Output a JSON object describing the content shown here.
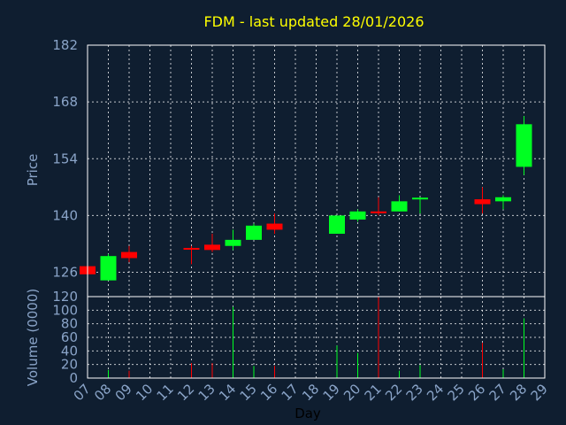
{
  "chart_data": {
    "type": "candlestick",
    "title": "FDM - last updated 28/01/2026",
    "xlabel": "Day",
    "colors": {
      "background": "#0f1e30",
      "up": "#00ff22",
      "down": "#ff0000",
      "title": "#ffff00",
      "axis_text": "#8aa4c8",
      "frame": "#ffffff",
      "grid": "#ffffff"
    },
    "x_ticks": [
      "07",
      "08",
      "09",
      "10",
      "11",
      "12",
      "13",
      "14",
      "15",
      "16",
      "17",
      "18",
      "19",
      "20",
      "21",
      "22",
      "23",
      "24",
      "25",
      "26",
      "27",
      "28",
      "29"
    ],
    "price_panel": {
      "ylabel": "Price",
      "ylim": [
        120,
        182
      ],
      "yticks": [
        126,
        140,
        154,
        168,
        182
      ],
      "grid": true
    },
    "volume_panel": {
      "ylabel": "Volume (0000)",
      "ylim": [
        0,
        120
      ],
      "yticks": [
        0,
        20,
        40,
        60,
        80,
        100,
        120
      ],
      "grid": true
    },
    "candles": [
      {
        "day": 7,
        "open": 127.5,
        "high": 128.0,
        "low": 125.0,
        "close": 125.5,
        "volume": 0
      },
      {
        "day": 8,
        "open": 124.0,
        "high": 130.5,
        "low": 124.0,
        "close": 130.0,
        "volume": 12
      },
      {
        "day": 9,
        "open": 131.0,
        "high": 132.5,
        "low": 128.5,
        "close": 129.5,
        "volume": 11
      },
      {
        "day": 12,
        "open": 132.0,
        "high": 132.5,
        "low": 128.0,
        "close": 131.8,
        "volume": 22
      },
      {
        "day": 13,
        "open": 132.8,
        "high": 135.5,
        "low": 131.0,
        "close": 131.5,
        "volume": 22
      },
      {
        "day": 14,
        "open": 132.5,
        "high": 136.5,
        "low": 131.5,
        "close": 134.0,
        "volume": 105
      },
      {
        "day": 15,
        "open": 134.0,
        "high": 138.0,
        "low": 134.0,
        "close": 137.5,
        "volume": 18
      },
      {
        "day": 16,
        "open": 138.0,
        "high": 140.5,
        "low": 135.5,
        "close": 136.5,
        "volume": 18
      },
      {
        "day": 19,
        "open": 135.5,
        "high": 140.0,
        "low": 135.5,
        "close": 140.0,
        "volume": 48
      },
      {
        "day": 20,
        "open": 139.0,
        "high": 141.5,
        "low": 138.5,
        "close": 141.0,
        "volume": 37
      },
      {
        "day": 21,
        "open": 141.0,
        "high": 144.5,
        "low": 140.0,
        "close": 140.6,
        "volume": 120
      },
      {
        "day": 22,
        "open": 141.0,
        "high": 145.0,
        "low": 141.0,
        "close": 143.5,
        "volume": 11
      },
      {
        "day": 23,
        "open": 144.2,
        "high": 144.5,
        "low": 140.5,
        "close": 144.4,
        "volume": 19
      },
      {
        "day": 26,
        "open": 144.0,
        "high": 147.0,
        "low": 140.5,
        "close": 142.8,
        "volume": 52
      },
      {
        "day": 27,
        "open": 143.5,
        "high": 145.0,
        "low": 141.5,
        "close": 144.5,
        "volume": 13
      },
      {
        "day": 28,
        "open": 152.0,
        "high": 164.5,
        "low": 150.0,
        "close": 162.5,
        "volume": 88
      }
    ]
  }
}
